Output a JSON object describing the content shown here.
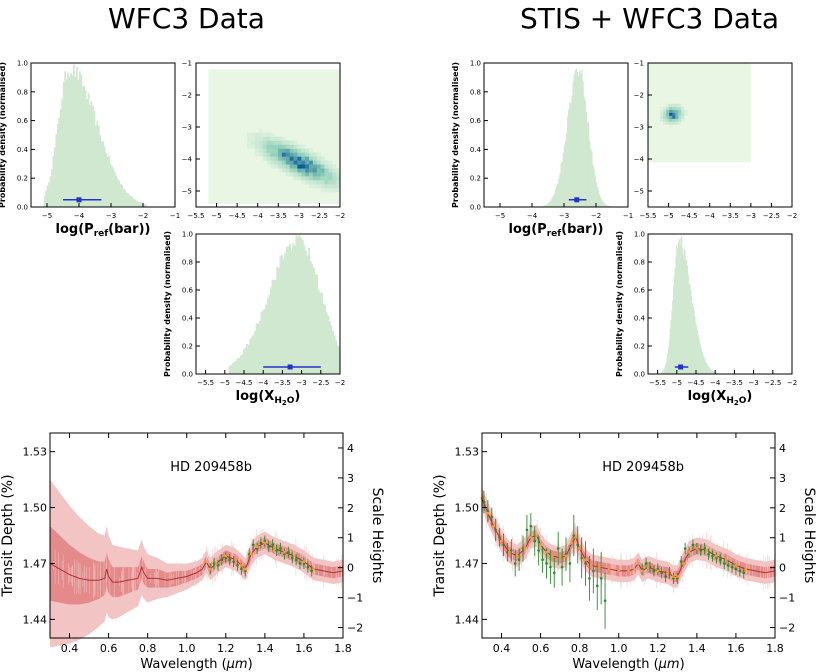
{
  "titles": {
    "left": "WFC3 Data",
    "right": "STIS + WFC3 Data"
  },
  "colors": {
    "hist": "#cfe8cf",
    "errbar": "#2233cc",
    "model_dark": "#b03030",
    "model_band1": "#e48a8a",
    "model_band2": "#f3c4c4",
    "data": "#2a8a2a",
    "binned": "#f0a020",
    "heat_low": "#e9f6e4",
    "heat_mid": "#8fcfb8",
    "heat_high": "#0b5e98"
  },
  "labels": {
    "pdensity": "Probability density (normalised)",
    "logP": "log(P",
    "logP_sub": "ref",
    "logP_end": "(bar))",
    "logX": "log(X",
    "logX_sub": "H",
    "logX_sub2": "2",
    "logX_sub3": "O",
    "logX_end": ")",
    "planet": "HD 209458b",
    "wavelength": "Wavelength (",
    "mu": "μm",
    "wavelength_end": ")",
    "transit": "Transit Depth (%)",
    "scale": "Scale Heights"
  },
  "chart_data": [
    {
      "id": "left_hist_P",
      "type": "bar",
      "title": "",
      "xlabel": "log(Pref(bar))",
      "ylabel": "Probability density (normalised)",
      "xlim": [
        -5.5,
        -1
      ],
      "ylim": [
        0,
        1
      ],
      "xticks": [
        -5,
        -4,
        -3,
        -2,
        -1
      ],
      "yticks": [
        0,
        0.2,
        0.4,
        0.6,
        0.8,
        1.0
      ],
      "shape": {
        "peak": -4.3,
        "left_width": 0.35,
        "right_width": 0.85,
        "range": [
          -5.1,
          -1.9
        ]
      },
      "errorbar": {
        "center": -4.0,
        "low": -4.5,
        "high": -3.3,
        "y": 0.05
      }
    },
    {
      "id": "left_corner_2d",
      "type": "heatmap",
      "xlim": [
        -5.5,
        -2.0
      ],
      "ylim": [
        -5.5,
        -1.0
      ],
      "xticks": [
        -5.5,
        -5.0,
        -4.5,
        -4.0,
        -3.5,
        -3.0,
        -2.5,
        -2.0
      ],
      "yticks": [
        -5,
        -4,
        -3,
        -2,
        -1
      ],
      "correlation": {
        "x_center": -3.0,
        "y_center": -4.1,
        "slope": -0.6,
        "sx": 0.55,
        "sy": 0.25
      },
      "xrange_data": [
        -5.2,
        -2.0
      ],
      "yrange_data": [
        -5.4,
        -1.2
      ]
    },
    {
      "id": "left_hist_X",
      "type": "bar",
      "xlabel": "log(XH2O)",
      "ylabel": "Probability density (normalised)",
      "xlim": [
        -5.75,
        -2.0
      ],
      "ylim": [
        0,
        1
      ],
      "xticks": [
        -5.5,
        -5.0,
        -4.5,
        -4.0,
        -3.5,
        -3.0,
        -2.5,
        -2.0
      ],
      "yticks": [
        0,
        0.2,
        0.4,
        0.6,
        0.8,
        1.0
      ],
      "shape": {
        "peak": -3.1,
        "left_width": 0.75,
        "right_width": 0.6,
        "range": [
          -4.9,
          -2.0
        ]
      },
      "errorbar": {
        "center": -3.3,
        "low": -4.0,
        "high": -2.5,
        "y": 0.05
      }
    },
    {
      "id": "right_hist_P",
      "type": "bar",
      "xlabel": "log(Pref(bar))",
      "ylabel": "Probability density (normalised)",
      "xlim": [
        -5.5,
        -1
      ],
      "ylim": [
        0,
        1
      ],
      "xticks": [
        -5,
        -4,
        -3,
        -2,
        -1
      ],
      "yticks": [
        0,
        0.2,
        0.4,
        0.6,
        0.8,
        1.0
      ],
      "shape": {
        "peak": -2.55,
        "left_width": 0.35,
        "right_width": 0.3,
        "range": [
          -3.9,
          -1.5
        ]
      },
      "errorbar": {
        "center": -2.6,
        "low": -2.85,
        "high": -2.3,
        "y": 0.05
      }
    },
    {
      "id": "right_corner_2d",
      "type": "heatmap",
      "xlim": [
        -5.5,
        -2.0
      ],
      "ylim": [
        -5.5,
        -1.0
      ],
      "xticks": [
        -5.5,
        -5.0,
        -4.5,
        -4.0,
        -3.5,
        -3.0,
        -2.5,
        -2.0
      ],
      "yticks": [
        -5,
        -4,
        -3,
        -2,
        -1
      ],
      "correlation": {
        "x_center": -4.9,
        "y_center": -2.6,
        "slope": 0.1,
        "sx": 0.14,
        "sy": 0.15
      },
      "xrange_data": [
        -5.5,
        -3.0
      ],
      "yrange_data": [
        -4.1,
        -1.0
      ]
    },
    {
      "id": "right_hist_X",
      "type": "bar",
      "xlabel": "log(XH2O)",
      "ylabel": "Probability density (normalised)",
      "xlim": [
        -5.75,
        -2.0
      ],
      "ylim": [
        0,
        1
      ],
      "xticks": [
        -5.5,
        -5.0,
        -4.5,
        -4.0,
        -3.5,
        -3.0,
        -2.5,
        -2.0
      ],
      "yticks": [
        0,
        0.2,
        0.4,
        0.6,
        0.8,
        1.0
      ],
      "shape": {
        "peak": -4.95,
        "left_width": 0.15,
        "right_width": 0.32,
        "range": [
          -5.4,
          -3.9
        ]
      },
      "errorbar": {
        "center": -4.9,
        "low": -5.05,
        "high": -4.7,
        "y": 0.05
      }
    },
    {
      "id": "left_spectrum",
      "type": "line",
      "title": "HD 209458b",
      "xlabel": "Wavelength (μm)",
      "ylabel": "Transit Depth (%)",
      "y2label": "Scale Heights",
      "xlim": [
        0.3,
        1.8
      ],
      "ylim": [
        1.43,
        1.54
      ],
      "xticks": [
        0.4,
        0.6,
        0.8,
        1.0,
        1.2,
        1.4,
        1.6,
        1.8
      ],
      "yticks": [
        1.44,
        1.47,
        1.5,
        1.53
      ],
      "y2ticks": [
        -2,
        -1,
        0,
        1,
        2,
        3,
        4
      ],
      "y2lim": [
        -2.35,
        4.5
      ],
      "model": {
        "x": [
          0.3,
          0.35,
          0.4,
          0.45,
          0.5,
          0.55,
          0.58,
          0.59,
          0.6,
          0.62,
          0.65,
          0.7,
          0.75,
          0.77,
          0.78,
          0.8,
          0.85,
          0.9,
          0.95,
          1.0,
          1.05,
          1.08,
          1.1,
          1.12,
          1.15,
          1.2,
          1.25,
          1.28,
          1.3,
          1.33,
          1.36,
          1.4,
          1.45,
          1.5,
          1.55,
          1.6,
          1.65,
          1.7,
          1.75,
          1.8
        ],
        "y": [
          1.47,
          1.467,
          1.464,
          1.462,
          1.461,
          1.461,
          1.462,
          1.467,
          1.463,
          1.46,
          1.46,
          1.461,
          1.462,
          1.468,
          1.465,
          1.462,
          1.462,
          1.461,
          1.462,
          1.463,
          1.465,
          1.467,
          1.471,
          1.467,
          1.47,
          1.474,
          1.472,
          1.469,
          1.467,
          1.475,
          1.479,
          1.481,
          1.478,
          1.476,
          1.474,
          1.471,
          1.467,
          1.466,
          1.465,
          1.466
        ],
        "band1": [
          0.02,
          0.018,
          0.016,
          0.014,
          0.012,
          0.01,
          0.009,
          0.009,
          0.009,
          0.008,
          0.008,
          0.007,
          0.006,
          0.006,
          0.006,
          0.005,
          0.005,
          0.004,
          0.004,
          0.003,
          0.003,
          0.003,
          0.003,
          0.003,
          0.003,
          0.003,
          0.003,
          0.003,
          0.003,
          0.003,
          0.003,
          0.003,
          0.003,
          0.003,
          0.003,
          0.003,
          0.003,
          0.003,
          0.003,
          0.003
        ],
        "band2": [
          0.045,
          0.041,
          0.037,
          0.033,
          0.029,
          0.025,
          0.023,
          0.023,
          0.022,
          0.02,
          0.019,
          0.017,
          0.015,
          0.015,
          0.014,
          0.013,
          0.011,
          0.009,
          0.008,
          0.007,
          0.006,
          0.006,
          0.006,
          0.006,
          0.006,
          0.006,
          0.006,
          0.006,
          0.006,
          0.006,
          0.006,
          0.006,
          0.006,
          0.006,
          0.006,
          0.006,
          0.006,
          0.006,
          0.006,
          0.006
        ]
      },
      "data": {
        "x": [
          1.12,
          1.14,
          1.16,
          1.18,
          1.2,
          1.22,
          1.24,
          1.26,
          1.28,
          1.3,
          1.32,
          1.34,
          1.36,
          1.38,
          1.4,
          1.42,
          1.44,
          1.46,
          1.48,
          1.5,
          1.52,
          1.54,
          1.56,
          1.58,
          1.6,
          1.62,
          1.64
        ],
        "y": [
          1.467,
          1.47,
          1.469,
          1.472,
          1.473,
          1.472,
          1.471,
          1.469,
          1.467,
          1.466,
          1.475,
          1.48,
          1.478,
          1.481,
          1.482,
          1.479,
          1.48,
          1.477,
          1.478,
          1.475,
          1.476,
          1.473,
          1.472,
          1.47,
          1.47,
          1.468,
          1.466
        ],
        "err": [
          0.003,
          0.003,
          0.003,
          0.003,
          0.003,
          0.003,
          0.003,
          0.003,
          0.003,
          0.003,
          0.003,
          0.003,
          0.003,
          0.003,
          0.003,
          0.003,
          0.003,
          0.003,
          0.003,
          0.003,
          0.003,
          0.003,
          0.003,
          0.003,
          0.003,
          0.003,
          0.003
        ]
      }
    },
    {
      "id": "right_spectrum",
      "type": "line",
      "title": "HD 209458b",
      "xlabel": "Wavelength (μm)",
      "ylabel": "Transit Depth (%)",
      "y2label": "Scale Heights",
      "xlim": [
        0.3,
        1.8
      ],
      "ylim": [
        1.43,
        1.54
      ],
      "xticks": [
        0.4,
        0.6,
        0.8,
        1.0,
        1.2,
        1.4,
        1.6,
        1.8
      ],
      "yticks": [
        1.44,
        1.47,
        1.5,
        1.53
      ],
      "y2ticks": [
        -2,
        -1,
        0,
        1,
        2,
        3,
        4
      ],
      "y2lim": [
        -2.35,
        4.5
      ],
      "model": {
        "x": [
          0.3,
          0.33,
          0.36,
          0.4,
          0.44,
          0.48,
          0.52,
          0.55,
          0.58,
          0.6,
          0.63,
          0.66,
          0.7,
          0.73,
          0.76,
          0.78,
          0.8,
          0.83,
          0.86,
          0.9,
          0.95,
          1.0,
          1.05,
          1.08,
          1.1,
          1.12,
          1.15,
          1.2,
          1.25,
          1.28,
          1.3,
          1.33,
          1.36,
          1.4,
          1.45,
          1.5,
          1.55,
          1.6,
          1.65,
          1.7,
          1.75,
          1.8
        ],
        "y": [
          1.505,
          1.497,
          1.49,
          1.482,
          1.476,
          1.474,
          1.478,
          1.484,
          1.485,
          1.48,
          1.476,
          1.474,
          1.473,
          1.474,
          1.481,
          1.484,
          1.478,
          1.472,
          1.469,
          1.468,
          1.467,
          1.466,
          1.466,
          1.467,
          1.47,
          1.466,
          1.468,
          1.466,
          1.465,
          1.463,
          1.463,
          1.47,
          1.476,
          1.478,
          1.477,
          1.474,
          1.472,
          1.469,
          1.467,
          1.466,
          1.465,
          1.466
        ],
        "band1": [
          0.003,
          0.003,
          0.003,
          0.003,
          0.003,
          0.003,
          0.003,
          0.003,
          0.003,
          0.003,
          0.003,
          0.003,
          0.003,
          0.003,
          0.003,
          0.003,
          0.003,
          0.003,
          0.003,
          0.003,
          0.003,
          0.003,
          0.003,
          0.003,
          0.003,
          0.003,
          0.003,
          0.003,
          0.003,
          0.003,
          0.003,
          0.003,
          0.003,
          0.003,
          0.003,
          0.003,
          0.003,
          0.003,
          0.003,
          0.003,
          0.003,
          0.003
        ],
        "band2": [
          0.006,
          0.006,
          0.006,
          0.006,
          0.006,
          0.006,
          0.006,
          0.006,
          0.006,
          0.006,
          0.006,
          0.006,
          0.006,
          0.006,
          0.006,
          0.006,
          0.006,
          0.006,
          0.006,
          0.006,
          0.006,
          0.006,
          0.006,
          0.006,
          0.006,
          0.006,
          0.006,
          0.006,
          0.006,
          0.006,
          0.006,
          0.006,
          0.006,
          0.006,
          0.006,
          0.006,
          0.006,
          0.006,
          0.006,
          0.006,
          0.006,
          0.006
        ]
      },
      "data": {
        "x": [
          0.31,
          0.33,
          0.35,
          0.37,
          0.39,
          0.41,
          0.43,
          0.45,
          0.47,
          0.49,
          0.51,
          0.53,
          0.55,
          0.57,
          0.59,
          0.61,
          0.63,
          0.65,
          0.67,
          0.69,
          0.71,
          0.73,
          0.75,
          0.77,
          0.79,
          0.81,
          0.83,
          0.85,
          0.87,
          0.89,
          0.91,
          0.93,
          1.12,
          1.14,
          1.16,
          1.18,
          1.2,
          1.22,
          1.24,
          1.26,
          1.28,
          1.3,
          1.32,
          1.34,
          1.36,
          1.38,
          1.4,
          1.42,
          1.44,
          1.46,
          1.48,
          1.5,
          1.52,
          1.54,
          1.56,
          1.58,
          1.6,
          1.62,
          1.64
        ],
        "y": [
          1.503,
          1.498,
          1.495,
          1.488,
          1.484,
          1.48,
          1.476,
          1.477,
          1.47,
          1.472,
          1.478,
          1.488,
          1.49,
          1.482,
          1.477,
          1.472,
          1.47,
          1.468,
          1.465,
          1.478,
          1.468,
          1.475,
          1.47,
          1.485,
          1.48,
          1.473,
          1.47,
          1.462,
          1.466,
          1.458,
          1.462,
          1.45,
          1.467,
          1.47,
          1.468,
          1.466,
          1.467,
          1.465,
          1.463,
          1.465,
          1.462,
          1.462,
          1.471,
          1.478,
          1.476,
          1.48,
          1.478,
          1.477,
          1.478,
          1.475,
          1.474,
          1.473,
          1.472,
          1.47,
          1.469,
          1.468,
          1.467,
          1.466,
          1.465
        ],
        "err": [
          0.006,
          0.006,
          0.005,
          0.006,
          0.005,
          0.006,
          0.005,
          0.006,
          0.007,
          0.006,
          0.007,
          0.008,
          0.007,
          0.008,
          0.008,
          0.007,
          0.008,
          0.009,
          0.008,
          0.009,
          0.01,
          0.009,
          0.01,
          0.011,
          0.01,
          0.011,
          0.012,
          0.012,
          0.012,
          0.013,
          0.014,
          0.015,
          0.003,
          0.003,
          0.003,
          0.003,
          0.003,
          0.003,
          0.003,
          0.003,
          0.003,
          0.003,
          0.003,
          0.003,
          0.003,
          0.003,
          0.003,
          0.003,
          0.003,
          0.003,
          0.003,
          0.003,
          0.003,
          0.003,
          0.003,
          0.003,
          0.003,
          0.003,
          0.003
        ]
      }
    }
  ]
}
